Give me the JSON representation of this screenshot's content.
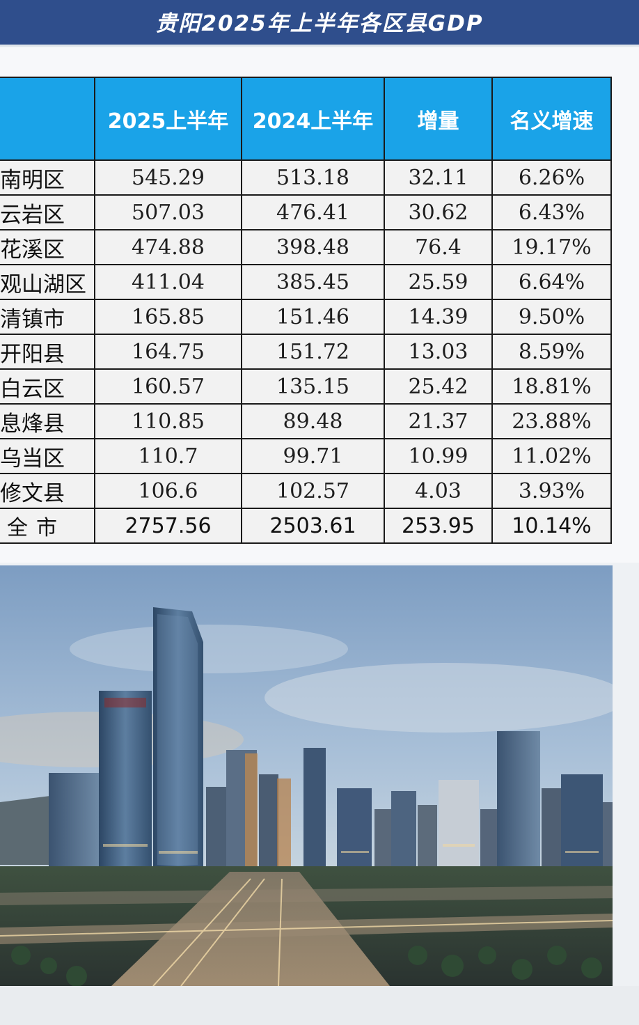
{
  "banner": {
    "title": "贵阳2025年上半年各区县GDP"
  },
  "table": {
    "headers": [
      "",
      "2025上半年",
      "2024上半年",
      "增量",
      "名义增速"
    ],
    "rows": [
      {
        "region": "南明区",
        "y2025": "545.29",
        "y2024": "513.18",
        "increase": "32.11",
        "growth": "6.26%"
      },
      {
        "region": "云岩区",
        "y2025": "507.03",
        "y2024": "476.41",
        "increase": "30.62",
        "growth": "6.43%"
      },
      {
        "region": "花溪区",
        "y2025": "474.88",
        "y2024": "398.48",
        "increase": "76.4",
        "growth": "19.17%"
      },
      {
        "region": "观山湖区",
        "y2025": "411.04",
        "y2024": "385.45",
        "increase": "25.59",
        "growth": "6.64%"
      },
      {
        "region": "清镇市",
        "y2025": "165.85",
        "y2024": "151.46",
        "increase": "14.39",
        "growth": "9.50%"
      },
      {
        "region": "开阳县",
        "y2025": "164.75",
        "y2024": "151.72",
        "increase": "13.03",
        "growth": "8.59%"
      },
      {
        "region": "白云区",
        "y2025": "160.57",
        "y2024": "135.15",
        "increase": "25.42",
        "growth": "18.81%"
      },
      {
        "region": "息烽县",
        "y2025": "110.85",
        "y2024": "89.48",
        "increase": "21.37",
        "growth": "23.88%"
      },
      {
        "region": "乌当区",
        "y2025": "110.7",
        "y2024": "99.71",
        "increase": "10.99",
        "growth": "11.02%"
      },
      {
        "region": "修文县",
        "y2025": "106.6",
        "y2024": "102.57",
        "increase": "4.03",
        "growth": "3.93%"
      }
    ],
    "total": {
      "region": "全市",
      "y2025": "2757.56",
      "y2024": "2503.61",
      "increase": "253.95",
      "growth": "10.14%"
    }
  },
  "colors": {
    "banner": "#2f4e8c",
    "header": "#1aa3e8",
    "cell": "#f2f2f2",
    "border": "#1a1a1a"
  },
  "photo": {
    "subject": "city-skyline-at-dusk"
  }
}
